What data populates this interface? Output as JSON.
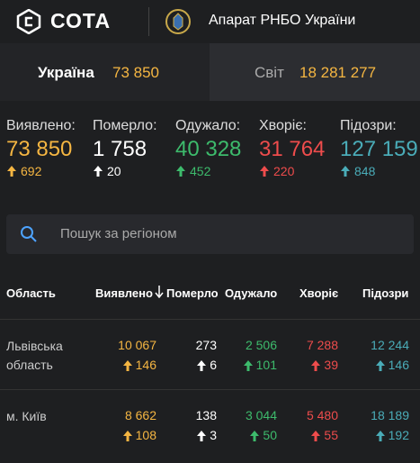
{
  "header": {
    "logo": "СОТА",
    "org": "Апарат РНБО України"
  },
  "tabs": [
    {
      "label": "Україна",
      "value": "73 850"
    },
    {
      "label": "Світ",
      "value": "18 281 277"
    }
  ],
  "stats": [
    {
      "label": "Виявлено:",
      "value": "73 850",
      "delta": "692",
      "color": "#f5b642"
    },
    {
      "label": "Померло:",
      "value": "1 758",
      "delta": "20",
      "color": "#ffffff"
    },
    {
      "label": "Одужало:",
      "value": "40 328",
      "delta": "452",
      "color": "#3dbb6c"
    },
    {
      "label": "Хворіє:",
      "value": "31 764",
      "delta": "220",
      "color": "#ee4c4c"
    },
    {
      "label": "Підозри:",
      "value": "127 159",
      "delta": "848",
      "color": "#4aacb8"
    }
  ],
  "search": {
    "placeholder": "Пошук за регіоном"
  },
  "table": {
    "columns": [
      "Область",
      "Виявлено",
      "Померло",
      "Одужало",
      "Хворіє",
      "Підозри"
    ],
    "rows": [
      {
        "region": "Львівська область",
        "cells": [
          {
            "value": "10 067",
            "delta": "146"
          },
          {
            "value": "273",
            "delta": "6"
          },
          {
            "value": "2 506",
            "delta": "101"
          },
          {
            "value": "7 288",
            "delta": "39"
          },
          {
            "value": "12 244",
            "delta": "146"
          }
        ]
      },
      {
        "region": "м. Київ",
        "cells": [
          {
            "value": "8 662",
            "delta": "108"
          },
          {
            "value": "138",
            "delta": "3"
          },
          {
            "value": "3 044",
            "delta": "50"
          },
          {
            "value": "5 480",
            "delta": "55"
          },
          {
            "value": "18 189",
            "delta": "192"
          }
        ]
      }
    ]
  }
}
